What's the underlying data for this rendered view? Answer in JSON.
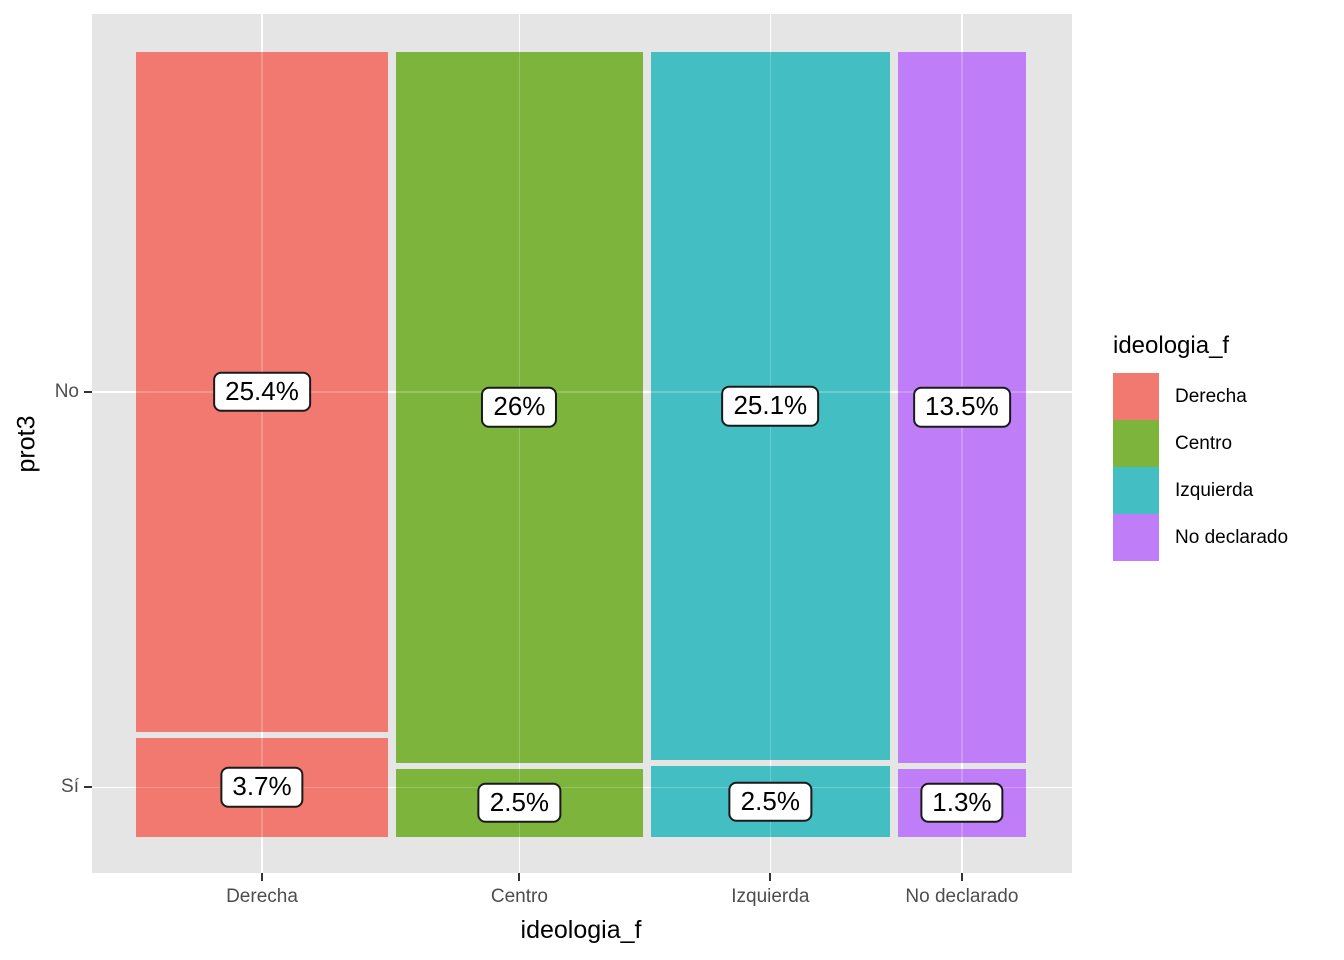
{
  "figure": {
    "background": "#FFFFFF",
    "panel_bg": "#E5E5E5",
    "grid_color": "#FFFFFF"
  },
  "axes": {
    "x": {
      "title": "ideologia_f",
      "tick_labels": [
        "Derecha",
        "Centro",
        "Izquierda",
        "No declarado"
      ]
    },
    "y": {
      "title": "prot3",
      "tick_labels": [
        "No",
        "Sí"
      ]
    }
  },
  "legend": {
    "title": "ideologia_f",
    "items": [
      {
        "label": "Derecha",
        "color": "#F1796F"
      },
      {
        "label": "Centro",
        "color": "#7CB43C"
      },
      {
        "label": "Izquierda",
        "color": "#43BEC3"
      },
      {
        "label": "No declarado",
        "color": "#C07DF8"
      }
    ]
  },
  "chart_data": {
    "type": "mosaic",
    "x_variable": "ideologia_f",
    "y_variable": "prot3",
    "x_categories": [
      "Derecha",
      "Centro",
      "Izquierda",
      "No declarado"
    ],
    "y_categories": [
      "No",
      "Sí"
    ],
    "grid": true,
    "legend_position": "right",
    "columns": [
      {
        "x": "Derecha",
        "color": "#F1796F",
        "values": {
          "No": 25.4,
          "Sí": 3.7
        },
        "labels": {
          "No": "25.4%",
          "Sí": "3.7%"
        }
      },
      {
        "x": "Centro",
        "color": "#7CB43C",
        "values": {
          "No": 26.0,
          "Sí": 2.5
        },
        "labels": {
          "No": "26%",
          "Sí": "2.5%"
        }
      },
      {
        "x": "Izquierda",
        "color": "#43BEC3",
        "values": {
          "No": 25.1,
          "Sí": 2.5
        },
        "labels": {
          "No": "25.1%",
          "Sí": "2.5%"
        }
      },
      {
        "x": "No declarado",
        "color": "#C07DF8",
        "values": {
          "No": 13.5,
          "Sí": 1.3
        },
        "labels": {
          "No": "13.5%",
          "Sí": "1.3%"
        }
      }
    ]
  }
}
